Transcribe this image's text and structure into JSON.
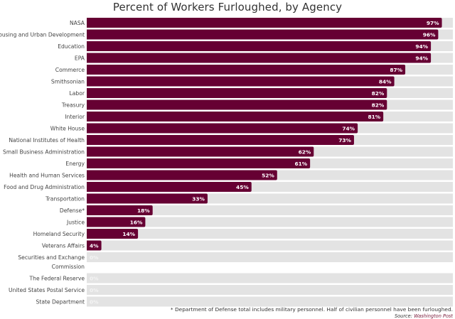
{
  "chart_data": {
    "type": "bar",
    "orientation": "horizontal",
    "title": "Percent of Workers Furloughed, by Agency",
    "xlabel": "",
    "ylabel": "",
    "xlim": [
      0,
      100
    ],
    "grid": false,
    "legend": null,
    "value_suffix": "%",
    "categories": [
      "NASA",
      "Housing and Urban Development",
      "Education",
      "EPA",
      "Commerce",
      "Smithsonian",
      "Labor",
      "Treasury",
      "Interior",
      "White House",
      "National Institutes of Health",
      "Small Business Administration",
      "Energy",
      "Health and Human Services",
      "Food and Drug Administration",
      "Transportation",
      "Defense*",
      "Justice",
      "Homeland Security",
      "Veterans Affairs",
      "Securities and Exchange Commission",
      "The Federal Reserve",
      "United States Postal Service",
      "State Department"
    ],
    "values": [
      97,
      96,
      94,
      94,
      87,
      84,
      82,
      82,
      81,
      74,
      73,
      62,
      61,
      52,
      45,
      33,
      18,
      16,
      14,
      4,
      0,
      0,
      0,
      0
    ],
    "colors": {
      "bar": "#660033",
      "track": "#e3e3e3",
      "value_label": "#ffffff"
    }
  },
  "footnote": {
    "note": "* Department of Defense total includes military personnel. Half of civilian personnel have been furloughed.",
    "source_label": "Source:",
    "source_name": "Washington Post"
  }
}
